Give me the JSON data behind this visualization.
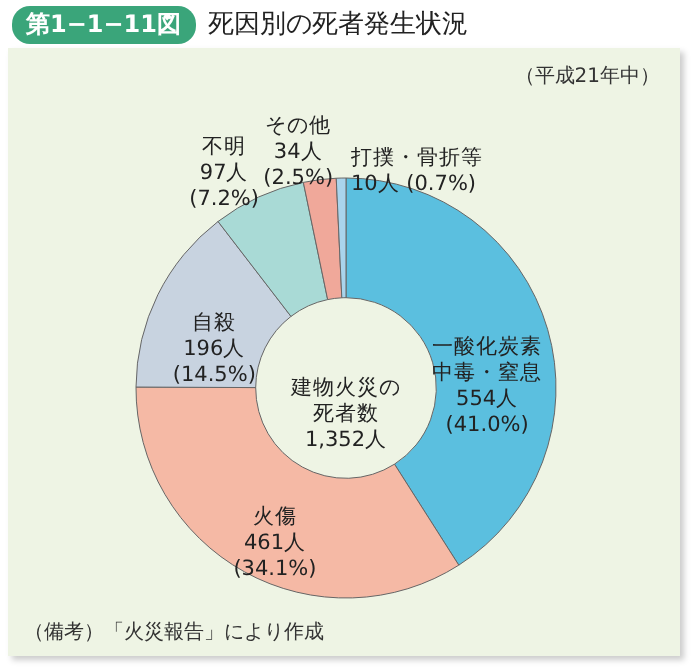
{
  "chart_data": {
    "type": "donut",
    "title": "死因別の死者発生状況",
    "subtitle": "（平成21年中）",
    "annotations": [
      "第1−1−11図",
      "建物火災の死者数",
      "1,352人",
      "（備考）「火災報告」により作成"
    ],
    "categories": [
      "一酸化炭素中毒・窒息",
      "火傷",
      "自殺",
      "不明",
      "その他",
      "打撲・骨折等"
    ],
    "values": [
      554,
      461,
      196,
      97,
      34,
      10
    ],
    "value_labels": [
      "554人\n(41.0%)",
      "461人\n(34.1%)",
      "196人\n(14.5%)",
      "97人\n(7.2%)",
      "34人\n(2.5%)",
      "10人 (0.7%)"
    ],
    "colors": [
      "#5bbfdf",
      "#f5b9a5",
      "#c8d3e0",
      "#a9dad6",
      "#f0a89a",
      "#a9d4ec"
    ]
  }
}
